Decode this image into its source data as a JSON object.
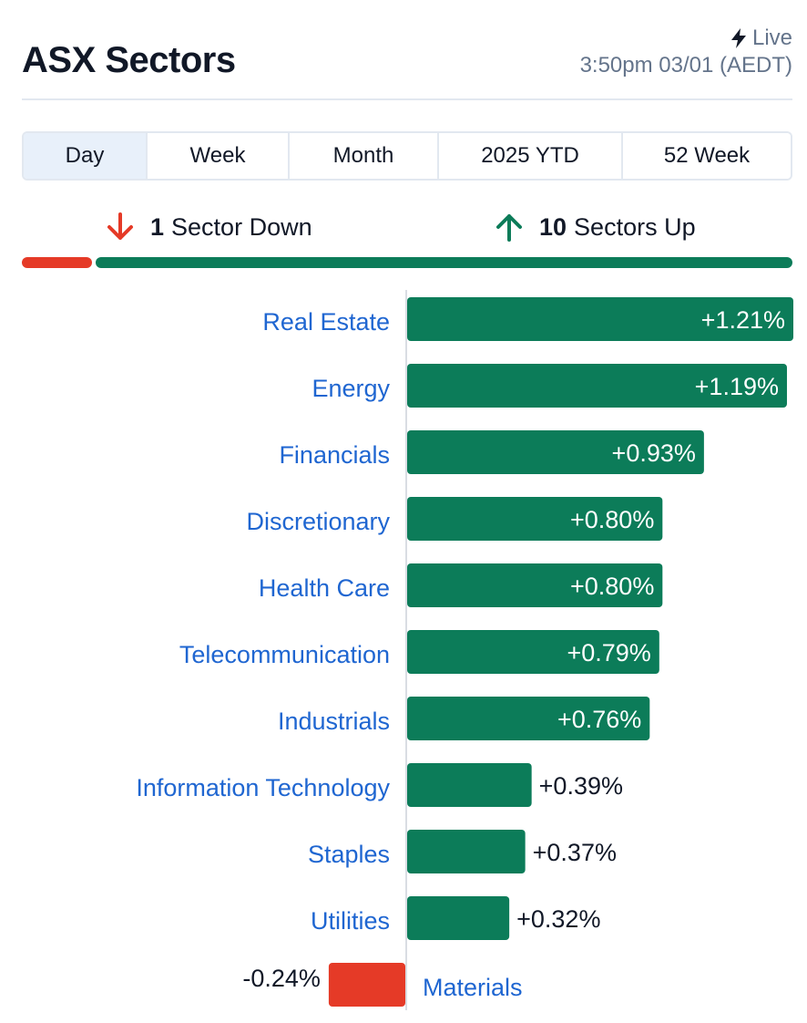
{
  "header": {
    "title": "ASX Sectors",
    "live_label": "Live",
    "live_icon": "lightning-bolt-icon",
    "timestamp": "3:50pm 03/01 (AEDT)"
  },
  "tabs": [
    {
      "label": "Day",
      "active": true
    },
    {
      "label": "Week",
      "active": false
    },
    {
      "label": "Month",
      "active": false
    },
    {
      "label": "2025 YTD",
      "active": false
    },
    {
      "label": "52 Week",
      "active": false
    }
  ],
  "summary": {
    "down_count": "1",
    "down_label": "Sector Down",
    "down_icon": "arrow-down-icon",
    "up_count": "10",
    "up_label": "Sectors Up",
    "up_icon": "arrow-up-icon"
  },
  "colors": {
    "up": "#0c7c59",
    "down": "#e53a27",
    "label": "#1f66d1",
    "value_outside": "#111827",
    "value_inside": "#ffffff",
    "axis": "#d9dde3"
  },
  "chart_data": {
    "type": "bar",
    "orientation": "horizontal",
    "categories": [
      "Real Estate",
      "Energy",
      "Financials",
      "Discretionary",
      "Health Care",
      "Telecommunication",
      "Industrials",
      "Information Technology",
      "Staples",
      "Utilities",
      "Materials"
    ],
    "values": [
      1.21,
      1.19,
      0.93,
      0.8,
      0.8,
      0.79,
      0.76,
      0.39,
      0.37,
      0.32,
      -0.24
    ],
    "value_labels": [
      "+1.21%",
      "+1.19%",
      "+0.93%",
      "+0.80%",
      "+0.80%",
      "+0.79%",
      "+0.76%",
      "+0.39%",
      "+0.37%",
      "+0.32%",
      "-0.24%"
    ],
    "unit": "%",
    "breadth": {
      "down": 1,
      "up": 10
    }
  }
}
